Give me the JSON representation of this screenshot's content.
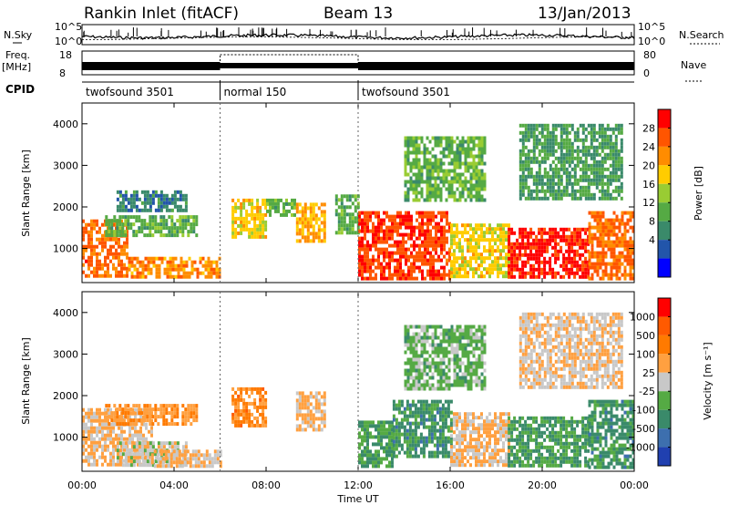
{
  "header": {
    "station": "Rankin Inlet (fitACF)",
    "beam": "Beam 13",
    "date": "13/Jan/2013"
  },
  "noise_panel": {
    "left_label": "N.Sky",
    "right_label": "N.Search",
    "left_ticks": [
      "10^5",
      "10^0"
    ],
    "right_ticks": [
      "10^5",
      "10^0"
    ]
  },
  "freq_panel": {
    "left_label_line1": "Freq.",
    "left_label_line2": "[MHz]",
    "right_label": "Nave",
    "left_ticks": [
      "18",
      "8"
    ],
    "right_ticks": [
      "80",
      "0"
    ]
  },
  "cpid": {
    "label": "CPID",
    "segments": [
      {
        "name": "twofsound 3501",
        "start_h": 0,
        "end_h": 6
      },
      {
        "name": "normal 150",
        "start_h": 6,
        "end_h": 12
      },
      {
        "name": "twofsound 3501",
        "start_h": 12,
        "end_h": 24
      }
    ]
  },
  "x_axis": {
    "label": "Time UT",
    "ticks": [
      "00:00",
      "04:00",
      "08:00",
      "12:00",
      "16:00",
      "20:00",
      "00:00"
    ],
    "range_h": [
      0,
      24
    ]
  },
  "power_panel": {
    "ylabel": "Slant Range [km]",
    "yticks": [
      "1000",
      "2000",
      "3000",
      "4000"
    ],
    "colorbar_label": "Power [dB]",
    "colorbar_ticks": [
      "4",
      "8",
      "12",
      "16",
      "20",
      "24",
      "28"
    ]
  },
  "velocity_panel": {
    "ylabel": "Slant Range [km]",
    "yticks": [
      "1000",
      "2000",
      "3000",
      "4000"
    ],
    "colorbar_label": "Velocity [m s⁻¹]",
    "colorbar_ticks": [
      "1000",
      "500",
      "100",
      "25",
      "-25",
      "-100",
      "-500",
      "-1000"
    ]
  },
  "chart_data": {
    "type": "heatmap",
    "x": {
      "quantity": "Time UT (hours)",
      "range": [
        0,
        24
      ]
    },
    "y": {
      "quantity": "Slant Range (km)",
      "range": [
        180,
        4500
      ]
    },
    "panels": [
      {
        "name": "Power",
        "unit": "dB",
        "scale": [
          0,
          30
        ],
        "colors": [
          "#0000ff",
          "#2255aa",
          "#3a8a6a",
          "#55aa44",
          "#99cc33",
          "#ffcc00",
          "#ff8c00",
          "#ff5500",
          "#ff0000"
        ],
        "regions": [
          {
            "t": [
              0.0,
              2.0
            ],
            "r": [
              300,
              1700
            ],
            "v": 24
          },
          {
            "t": [
              2.0,
              6.0
            ],
            "r": [
              300,
              800
            ],
            "v": 22
          },
          {
            "t": [
              1.0,
              5.0
            ],
            "r": [
              1300,
              1800
            ],
            "v": 12
          },
          {
            "t": [
              1.5,
              4.5
            ],
            "r": [
              1900,
              2400
            ],
            "v": 8
          },
          {
            "t": [
              6.5,
              8.0
            ],
            "r": [
              1300,
              2200
            ],
            "v": 18
          },
          {
            "t": [
              8.0,
              9.2
            ],
            "r": [
              1800,
              2200
            ],
            "v": 12
          },
          {
            "t": [
              9.3,
              10.6
            ],
            "r": [
              1200,
              2100
            ],
            "v": 20
          },
          {
            "t": [
              11.0,
              12.0
            ],
            "r": [
              1400,
              2300
            ],
            "v": 12
          },
          {
            "t": [
              12.0,
              16.0
            ],
            "r": [
              300,
              1900
            ],
            "v": 26
          },
          {
            "t": [
              16.0,
              18.5
            ],
            "r": [
              300,
              1600
            ],
            "v": 18
          },
          {
            "t": [
              18.5,
              22.0
            ],
            "r": [
              300,
              1500
            ],
            "v": 28
          },
          {
            "t": [
              22.0,
              24.0
            ],
            "r": [
              300,
              1900
            ],
            "v": 24
          },
          {
            "t": [
              14.0,
              17.5
            ],
            "r": [
              2200,
              3700
            ],
            "v": 12
          },
          {
            "t": [
              19.0,
              23.5
            ],
            "r": [
              2200,
              4000
            ],
            "v": 10
          }
        ]
      },
      {
        "name": "Velocity",
        "unit": "m/s",
        "scale": [
          -1000,
          1000
        ],
        "colors": [
          "#2040b0",
          "#3d6fae",
          "#3a8a6a",
          "#55aa44",
          "#c8c8c8",
          "#ffa040",
          "#ff7a00",
          "#ff5a00",
          "#ff0000"
        ],
        "regions": [
          {
            "t": [
              0.0,
              3.0
            ],
            "r": [
              300,
              1700
            ],
            "v": 150
          },
          {
            "t": [
              1.5,
              4.5
            ],
            "r": [
              300,
              900
            ],
            "v": 10
          },
          {
            "t": [
              3.0,
              6.0
            ],
            "r": [
              300,
              700
            ],
            "v": 120
          },
          {
            "t": [
              1.0,
              5.0
            ],
            "r": [
              1300,
              1800
            ],
            "v": 300
          },
          {
            "t": [
              6.5,
              8.0
            ],
            "r": [
              1300,
              2200
            ],
            "v": 400
          },
          {
            "t": [
              9.3,
              10.6
            ],
            "r": [
              1200,
              2100
            ],
            "v": 150
          },
          {
            "t": [
              12.0,
              13.5
            ],
            "r": [
              300,
              1400
            ],
            "v": -300
          },
          {
            "t": [
              13.5,
              16.0
            ],
            "r": [
              500,
              1900
            ],
            "v": -400
          },
          {
            "t": [
              16.0,
              18.5
            ],
            "r": [
              300,
              1600
            ],
            "v": 150
          },
          {
            "t": [
              18.5,
              22.0
            ],
            "r": [
              300,
              1500
            ],
            "v": -350
          },
          {
            "t": [
              22.0,
              24.0
            ],
            "r": [
              300,
              1900
            ],
            "v": -400
          },
          {
            "t": [
              14.0,
              17.5
            ],
            "r": [
              2200,
              3700
            ],
            "v": -200
          },
          {
            "t": [
              19.0,
              23.5
            ],
            "r": [
              2200,
              4000
            ],
            "v": 100
          }
        ]
      }
    ]
  }
}
